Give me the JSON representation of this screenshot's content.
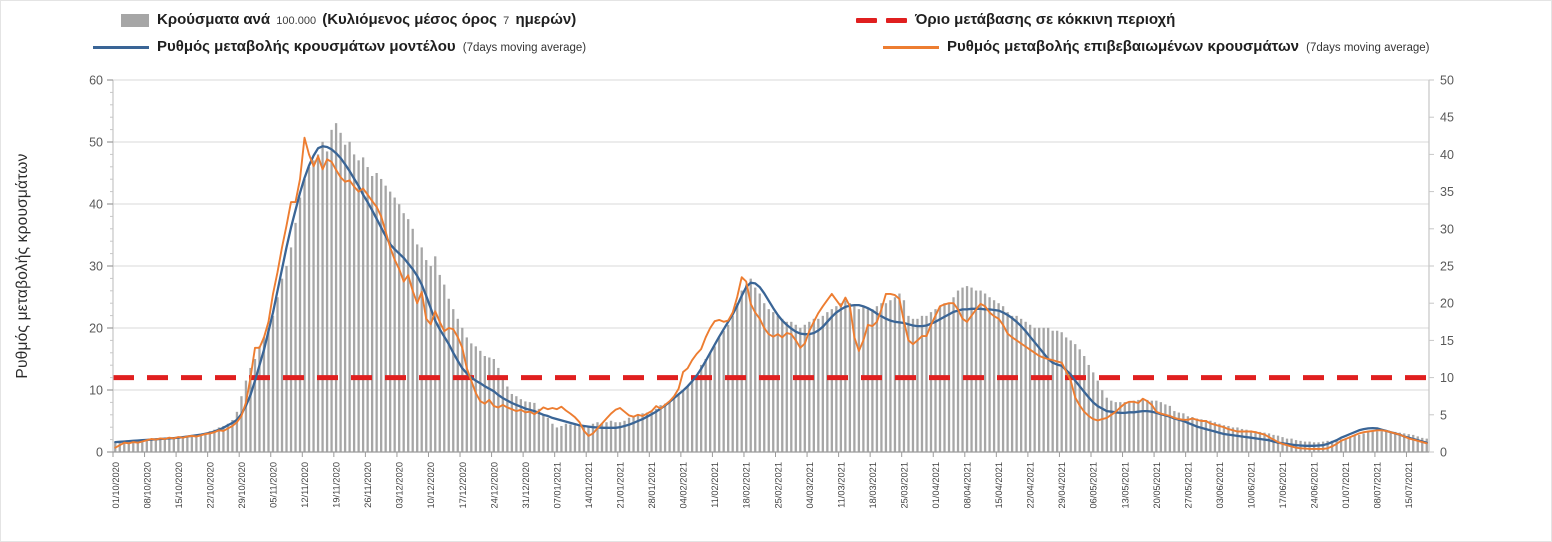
{
  "colors": {
    "bar": "#a6a6a6",
    "model_line": "#3a6596",
    "confirmed_line": "#ed7d31",
    "threshold": "#e01f1f",
    "grid": "#dadada",
    "spine": "#c6c6c6",
    "baseline": "#9a9a9a",
    "tick_text": "#595959",
    "date_text": "#3f3f3f"
  },
  "legend": {
    "items": [
      {
        "swatch": "bar",
        "bold_a": "Κρούσματα ανά",
        "num_a": "100.000",
        "bold_b": "(Κυλιόμενος μέσος όρος",
        "num_b": "7",
        "bold_c": "ημερών)"
      },
      {
        "swatch": "line-blue",
        "bold_a": "Ρυθμός μεταβολής κρουσμάτων μοντέλου",
        "small": "(7days moving average)"
      },
      {
        "swatch": "dash-red",
        "bold_a": "Όριο μετάβασης σε κόκκινη περιοχή"
      },
      {
        "swatch": "line-orange",
        "bold_a": "Ρυθμός μεταβολής επιβεβαιωμένων κρουσμάτων",
        "small": "(7days moving average)"
      }
    ]
  },
  "chart_data": {
    "type": "combo bar + line + threshold",
    "title": "",
    "axes": {
      "left": {
        "label": "Ρυθμός μεταβολής κρουσμάτων",
        "range": [
          0,
          60
        ],
        "ticks": [
          0,
          10,
          20,
          30,
          40,
          50,
          60
        ],
        "minor_step": 2
      },
      "right": {
        "label": "",
        "range": [
          0,
          50
        ],
        "ticks": [
          0,
          5,
          10,
          15,
          20,
          25,
          30,
          35,
          40,
          45,
          50
        ]
      }
    },
    "grid": true,
    "legend_position": "top",
    "threshold": {
      "name": "Όριο μετάβασης σε κόκκινη περιοχή",
      "axis": "right",
      "value": 10
    },
    "x_first_label": "01/10/2020",
    "x_label_every_days": 7,
    "x_tick_labels": [
      "01/10/2020",
      "08/10/2020",
      "15/10/2020",
      "22/10/2020",
      "29/10/2020",
      "05/11/2020",
      "12/11/2020",
      "19/11/2020",
      "26/11/2020",
      "03/12/2020",
      "10/12/2020",
      "17/12/2020",
      "24/12/2020",
      "31/12/2020",
      "07/01/2021",
      "14/01/2021",
      "21/01/2021",
      "28/01/2021",
      "04/02/2021",
      "11/02/2021",
      "18/02/2021",
      "25/02/2021",
      "04/03/2021",
      "11/03/2021",
      "18/03/2021",
      "25/03/2021",
      "01/04/2021",
      "08/04/2021",
      "15/04/2021",
      "22/04/2021",
      "29/04/2021",
      "06/05/2021",
      "13/05/2021",
      "20/05/2021",
      "27/05/2021",
      "03/06/2021",
      "10/06/2021",
      "17/06/2021",
      "24/06/2021",
      "01/07/2021",
      "08/07/2021",
      "15/07/2021"
    ],
    "series": [
      {
        "name": "Κρούσματα ανά 100.000 (Κυλιόμενος μέσος όρος 7 ημερών)",
        "type": "bar",
        "axis": "right",
        "values": [
          1.3,
          1.3,
          1.4,
          1.3,
          1.5,
          1.4,
          1.6,
          1.7,
          1.8,
          1.7,
          1.8,
          1.8,
          1.9,
          1.8,
          2.1,
          2.0,
          2.2,
          2.3,
          2.2,
          2.3,
          2.5,
          2.8,
          3.0,
          3.3,
          3.5,
          3.8,
          4.3,
          5.4,
          7.5,
          9.6,
          11.3,
          12.5,
          14.2,
          15.4,
          16.7,
          18.3,
          20.8,
          23.3,
          25.0,
          27.5,
          30.8,
          34.2,
          36.7,
          38.3,
          39.2,
          40.0,
          41.7,
          40.4,
          43.3,
          44.2,
          42.9,
          41.3,
          41.7,
          40.0,
          39.2,
          39.6,
          38.3,
          37.1,
          37.5,
          36.7,
          35.8,
          35.0,
          34.2,
          33.3,
          32.1,
          31.3,
          30.0,
          27.9,
          27.5,
          25.8,
          25.0,
          26.3,
          23.8,
          22.5,
          20.6,
          19.2,
          17.9,
          16.7,
          15.4,
          14.6,
          14.2,
          13.6,
          12.9,
          12.7,
          12.5,
          11.3,
          10.0,
          8.8,
          7.8,
          7.5,
          7.1,
          6.8,
          6.7,
          6.6,
          5.8,
          5.0,
          4.6,
          3.8,
          3.3,
          3.5,
          3.8,
          3.7,
          3.6,
          3.5,
          3.6,
          3.5,
          3.8,
          4.0,
          3.9,
          4.0,
          4.2,
          4.0,
          4.0,
          4.2,
          4.6,
          4.8,
          5.0,
          5.2,
          5.3,
          5.5,
          5.8,
          6.3,
          6.5,
          6.7,
          7.1,
          7.7,
          8.2,
          8.8,
          9.6,
          10.4,
          11.7,
          12.5,
          13.3,
          14.2,
          15.4,
          16.3,
          17.1,
          18.3,
          20.0,
          21.7,
          22.5,
          23.3,
          22.1,
          21.3,
          20.0,
          19.2,
          18.8,
          18.3,
          17.9,
          17.5,
          17.5,
          17.1,
          16.7,
          17.1,
          17.5,
          17.9,
          17.9,
          18.3,
          18.8,
          19.2,
          19.6,
          20.0,
          20.4,
          20.0,
          19.6,
          19.2,
          19.6,
          19.2,
          19.2,
          19.6,
          20.0,
          20.0,
          20.4,
          20.8,
          21.3,
          20.4,
          18.3,
          17.9,
          17.9,
          18.3,
          18.3,
          18.8,
          19.2,
          19.6,
          20.0,
          20.0,
          20.8,
          21.7,
          22.1,
          22.3,
          22.1,
          21.7,
          21.7,
          21.3,
          20.8,
          20.4,
          20.0,
          19.6,
          18.8,
          18.3,
          18.3,
          17.9,
          17.5,
          17.1,
          16.7,
          16.7,
          16.7,
          16.7,
          16.3,
          16.3,
          16.1,
          15.4,
          15.0,
          14.5,
          13.8,
          12.9,
          11.7,
          10.7,
          9.6,
          8.3,
          7.3,
          6.9,
          6.7,
          6.7,
          6.7,
          6.8,
          6.9,
          7.0,
          7.1,
          7.0,
          6.9,
          6.9,
          6.7,
          6.4,
          6.2,
          5.5,
          5.3,
          5.2,
          4.8,
          4.7,
          4.5,
          4.4,
          4.3,
          4.2,
          4.0,
          3.8,
          3.6,
          3.5,
          3.3,
          3.3,
          3.1,
          3.0,
          2.9,
          2.8,
          2.7,
          2.6,
          2.5,
          2.3,
          2.2,
          2.0,
          1.8,
          1.8,
          1.6,
          1.5,
          1.4,
          1.4,
          1.3,
          1.3,
          1.4,
          1.5,
          1.5,
          1.6,
          1.7,
          1.8,
          2.0,
          2.2,
          2.3,
          2.5,
          2.7,
          2.8,
          2.8,
          2.8,
          2.8,
          2.7,
          2.7,
          2.6,
          2.5,
          2.4,
          2.3,
          2.1,
          1.9,
          1.8
        ]
      },
      {
        "name": "Ρυθμός μεταβολής κρουσμάτων μοντέλου (7days moving average)",
        "type": "line",
        "axis": "left",
        "values": [
          1.6,
          1.65,
          1.7,
          1.75,
          1.8,
          1.85,
          1.9,
          1.95,
          2.0,
          2.05,
          2.1,
          2.15,
          2.2,
          2.25,
          2.3,
          2.4,
          2.5,
          2.6,
          2.7,
          2.8,
          2.95,
          3.1,
          3.3,
          3.6,
          3.9,
          4.3,
          4.7,
          5.2,
          6.1,
          7.5,
          9.2,
          11.5,
          14.0,
          16.5,
          19.5,
          22.5,
          26.0,
          29.5,
          33.0,
          36.2,
          39.0,
          41.8,
          44.2,
          46.2,
          47.8,
          49.0,
          49.3,
          49.2,
          48.8,
          48.2,
          47.4,
          46.4,
          45.3,
          44.1,
          42.9,
          41.5,
          40.3,
          39.0,
          37.6,
          36.2,
          34.8,
          33.5,
          32.7,
          32.0,
          31.3,
          30.4,
          29.5,
          28.4,
          27.0,
          25.2,
          23.2,
          21.2,
          19.8,
          18.6,
          17.4,
          16.0,
          14.7,
          13.5,
          12.7,
          12.0,
          11.5,
          11.1,
          10.6,
          10.2,
          9.8,
          9.2,
          8.7,
          8.3,
          7.9,
          7.6,
          7.3,
          7.0,
          6.8,
          6.6,
          6.3,
          6.0,
          5.8,
          5.5,
          5.3,
          5.1,
          4.9,
          4.7,
          4.5,
          4.3,
          4.2,
          4.1,
          4.0,
          3.95,
          3.9,
          3.9,
          3.9,
          3.9,
          4.0,
          4.2,
          4.4,
          4.7,
          5.0,
          5.3,
          5.7,
          6.1,
          6.5,
          7.0,
          7.5,
          8.1,
          8.7,
          9.3,
          9.9,
          10.6,
          11.4,
          12.3,
          13.4,
          14.7,
          16.0,
          17.3,
          18.6,
          19.8,
          21.0,
          22.2,
          23.6,
          25.2,
          26.6,
          27.3,
          27.2,
          26.6,
          25.6,
          24.4,
          23.2,
          22.1,
          21.2,
          20.5,
          19.9,
          19.4,
          19.1,
          19.0,
          19.0,
          19.2,
          19.6,
          20.2,
          21.0,
          21.8,
          22.5,
          23.0,
          23.4,
          23.6,
          23.7,
          23.7,
          23.5,
          23.2,
          22.8,
          22.3,
          21.9,
          21.5,
          21.2,
          21.0,
          20.9,
          20.8,
          20.6,
          20.4,
          20.3,
          20.3,
          20.4,
          20.7,
          21.0,
          21.4,
          21.8,
          22.2,
          22.6,
          22.8,
          23.0,
          23.0,
          23.1,
          23.1,
          23.1,
          23.0,
          23.0,
          22.9,
          22.8,
          22.5,
          22.1,
          21.6,
          21.0,
          20.3,
          19.5,
          18.6,
          17.7,
          16.8,
          15.9,
          15.0,
          14.4,
          14.1,
          13.9,
          13.2,
          12.5,
          11.5,
          10.6,
          9.7,
          8.8,
          8.0,
          7.4,
          7.0,
          6.6,
          6.5,
          6.4,
          6.3,
          6.3,
          6.4,
          6.4,
          6.5,
          6.6,
          6.6,
          6.5,
          6.3,
          6.1,
          5.9,
          5.7,
          5.4,
          5.2,
          5.0,
          4.7,
          4.4,
          4.1,
          3.9,
          3.7,
          3.5,
          3.3,
          3.1,
          2.9,
          2.8,
          2.7,
          2.6,
          2.5,
          2.4,
          2.3,
          2.2,
          2.1,
          2.0,
          1.9,
          1.7,
          1.5,
          1.4,
          1.3,
          1.2,
          1.1,
          1.05,
          1.0,
          1.0,
          1.0,
          1.05,
          1.1,
          1.3,
          1.6,
          1.9,
          2.3,
          2.6,
          2.9,
          3.2,
          3.5,
          3.7,
          3.8,
          3.85,
          3.8,
          3.6,
          3.4,
          3.2,
          3.0,
          2.8,
          2.5,
          2.3,
          2.1,
          1.9,
          1.7,
          1.5
        ]
      },
      {
        "name": "Ρυθμός μεταβολής επιβεβαιωμένων κρουσμάτων (7days moving average)",
        "type": "line",
        "axis": "left",
        "values": [
          0.7,
          1.1,
          1.5,
          1.4,
          1.6,
          1.5,
          1.7,
          1.9,
          2.1,
          2.0,
          2.2,
          2.1,
          2.3,
          2.2,
          2.4,
          2.3,
          2.5,
          2.6,
          2.5,
          2.7,
          2.9,
          3.0,
          3.2,
          3.5,
          3.4,
          3.8,
          4.2,
          4.8,
          5.8,
          8.0,
          12.0,
          16.8,
          16.8,
          18.5,
          21.0,
          25.5,
          29.0,
          33.0,
          36.5,
          40.3,
          40.3,
          44.0,
          50.7,
          48.0,
          46.1,
          47.7,
          45.6,
          47.2,
          46.8,
          45.5,
          44.3,
          43.6,
          43.8,
          42.8,
          42.0,
          42.5,
          41.5,
          40.5,
          39.5,
          38.0,
          35.5,
          33.0,
          31.0,
          29.5,
          27.5,
          28.5,
          26.0,
          24.0,
          25.8,
          21.5,
          20.6,
          22.7,
          21.0,
          19.5,
          20.0,
          19.8,
          18.5,
          16.8,
          13.5,
          11.5,
          9.5,
          8.2,
          7.8,
          8.4,
          7.4,
          7.2,
          7.6,
          7.2,
          6.9,
          6.6,
          6.8,
          6.4,
          6.5,
          6.1,
          6.6,
          7.2,
          6.9,
          7.1,
          6.9,
          7.3,
          6.7,
          6.2,
          5.6,
          4.8,
          3.4,
          2.6,
          3.0,
          3.8,
          4.6,
          5.4,
          6.2,
          6.8,
          7.1,
          6.5,
          5.9,
          5.7,
          6.0,
          5.8,
          6.2,
          6.6,
          7.4,
          7.0,
          7.6,
          8.2,
          9.0,
          10.2,
          12.9,
          13.5,
          14.8,
          15.8,
          16.6,
          18.5,
          20.0,
          21.1,
          21.3,
          21.0,
          21.2,
          22.5,
          25.0,
          28.2,
          27.5,
          23.9,
          22.5,
          21.5,
          20.0,
          19.0,
          18.6,
          19.0,
          18.5,
          19.2,
          19.0,
          18.0,
          16.8,
          17.5,
          19.5,
          21.0,
          22.4,
          23.5,
          24.5,
          25.5,
          24.5,
          23.5,
          24.9,
          23.5,
          18.5,
          16.3,
          18.0,
          20.5,
          20.3,
          21.0,
          23.0,
          25.5,
          25.5,
          25.3,
          24.7,
          21.0,
          18.0,
          17.4,
          18.0,
          18.7,
          18.7,
          20.5,
          22.0,
          23.5,
          23.8,
          24.0,
          24.0,
          23.0,
          21.5,
          21.0,
          22.0,
          23.0,
          23.9,
          23.5,
          22.5,
          21.9,
          21.5,
          20.5,
          19.1,
          18.5,
          18.0,
          17.5,
          17.0,
          16.5,
          16.0,
          15.5,
          15.2,
          15.0,
          14.8,
          14.6,
          14.4,
          13.0,
          11.5,
          8.8,
          7.5,
          6.5,
          5.8,
          5.3,
          5.1,
          5.3,
          5.5,
          6.0,
          6.5,
          7.2,
          7.8,
          8.1,
          8.1,
          7.9,
          8.6,
          8.2,
          7.6,
          6.5,
          6.2,
          6.0,
          5.8,
          5.5,
          5.3,
          5.2,
          5.2,
          5.4,
          5.2,
          5.0,
          5.0,
          4.6,
          4.4,
          4.2,
          4.0,
          3.7,
          3.5,
          3.3,
          3.3,
          3.3,
          3.3,
          3.2,
          3.0,
          2.8,
          2.4,
          2.0,
          1.6,
          1.3,
          1.1,
          0.9,
          0.7,
          0.6,
          0.55,
          0.5,
          0.5,
          0.5,
          0.5,
          0.6,
          0.9,
          1.3,
          1.8,
          2.1,
          2.4,
          2.7,
          3.0,
          3.2,
          3.3,
          3.4,
          3.5,
          3.5,
          3.4,
          3.2,
          3.0,
          2.8,
          2.5,
          2.2,
          2.0,
          1.8,
          1.6,
          1.4
        ]
      }
    ]
  }
}
